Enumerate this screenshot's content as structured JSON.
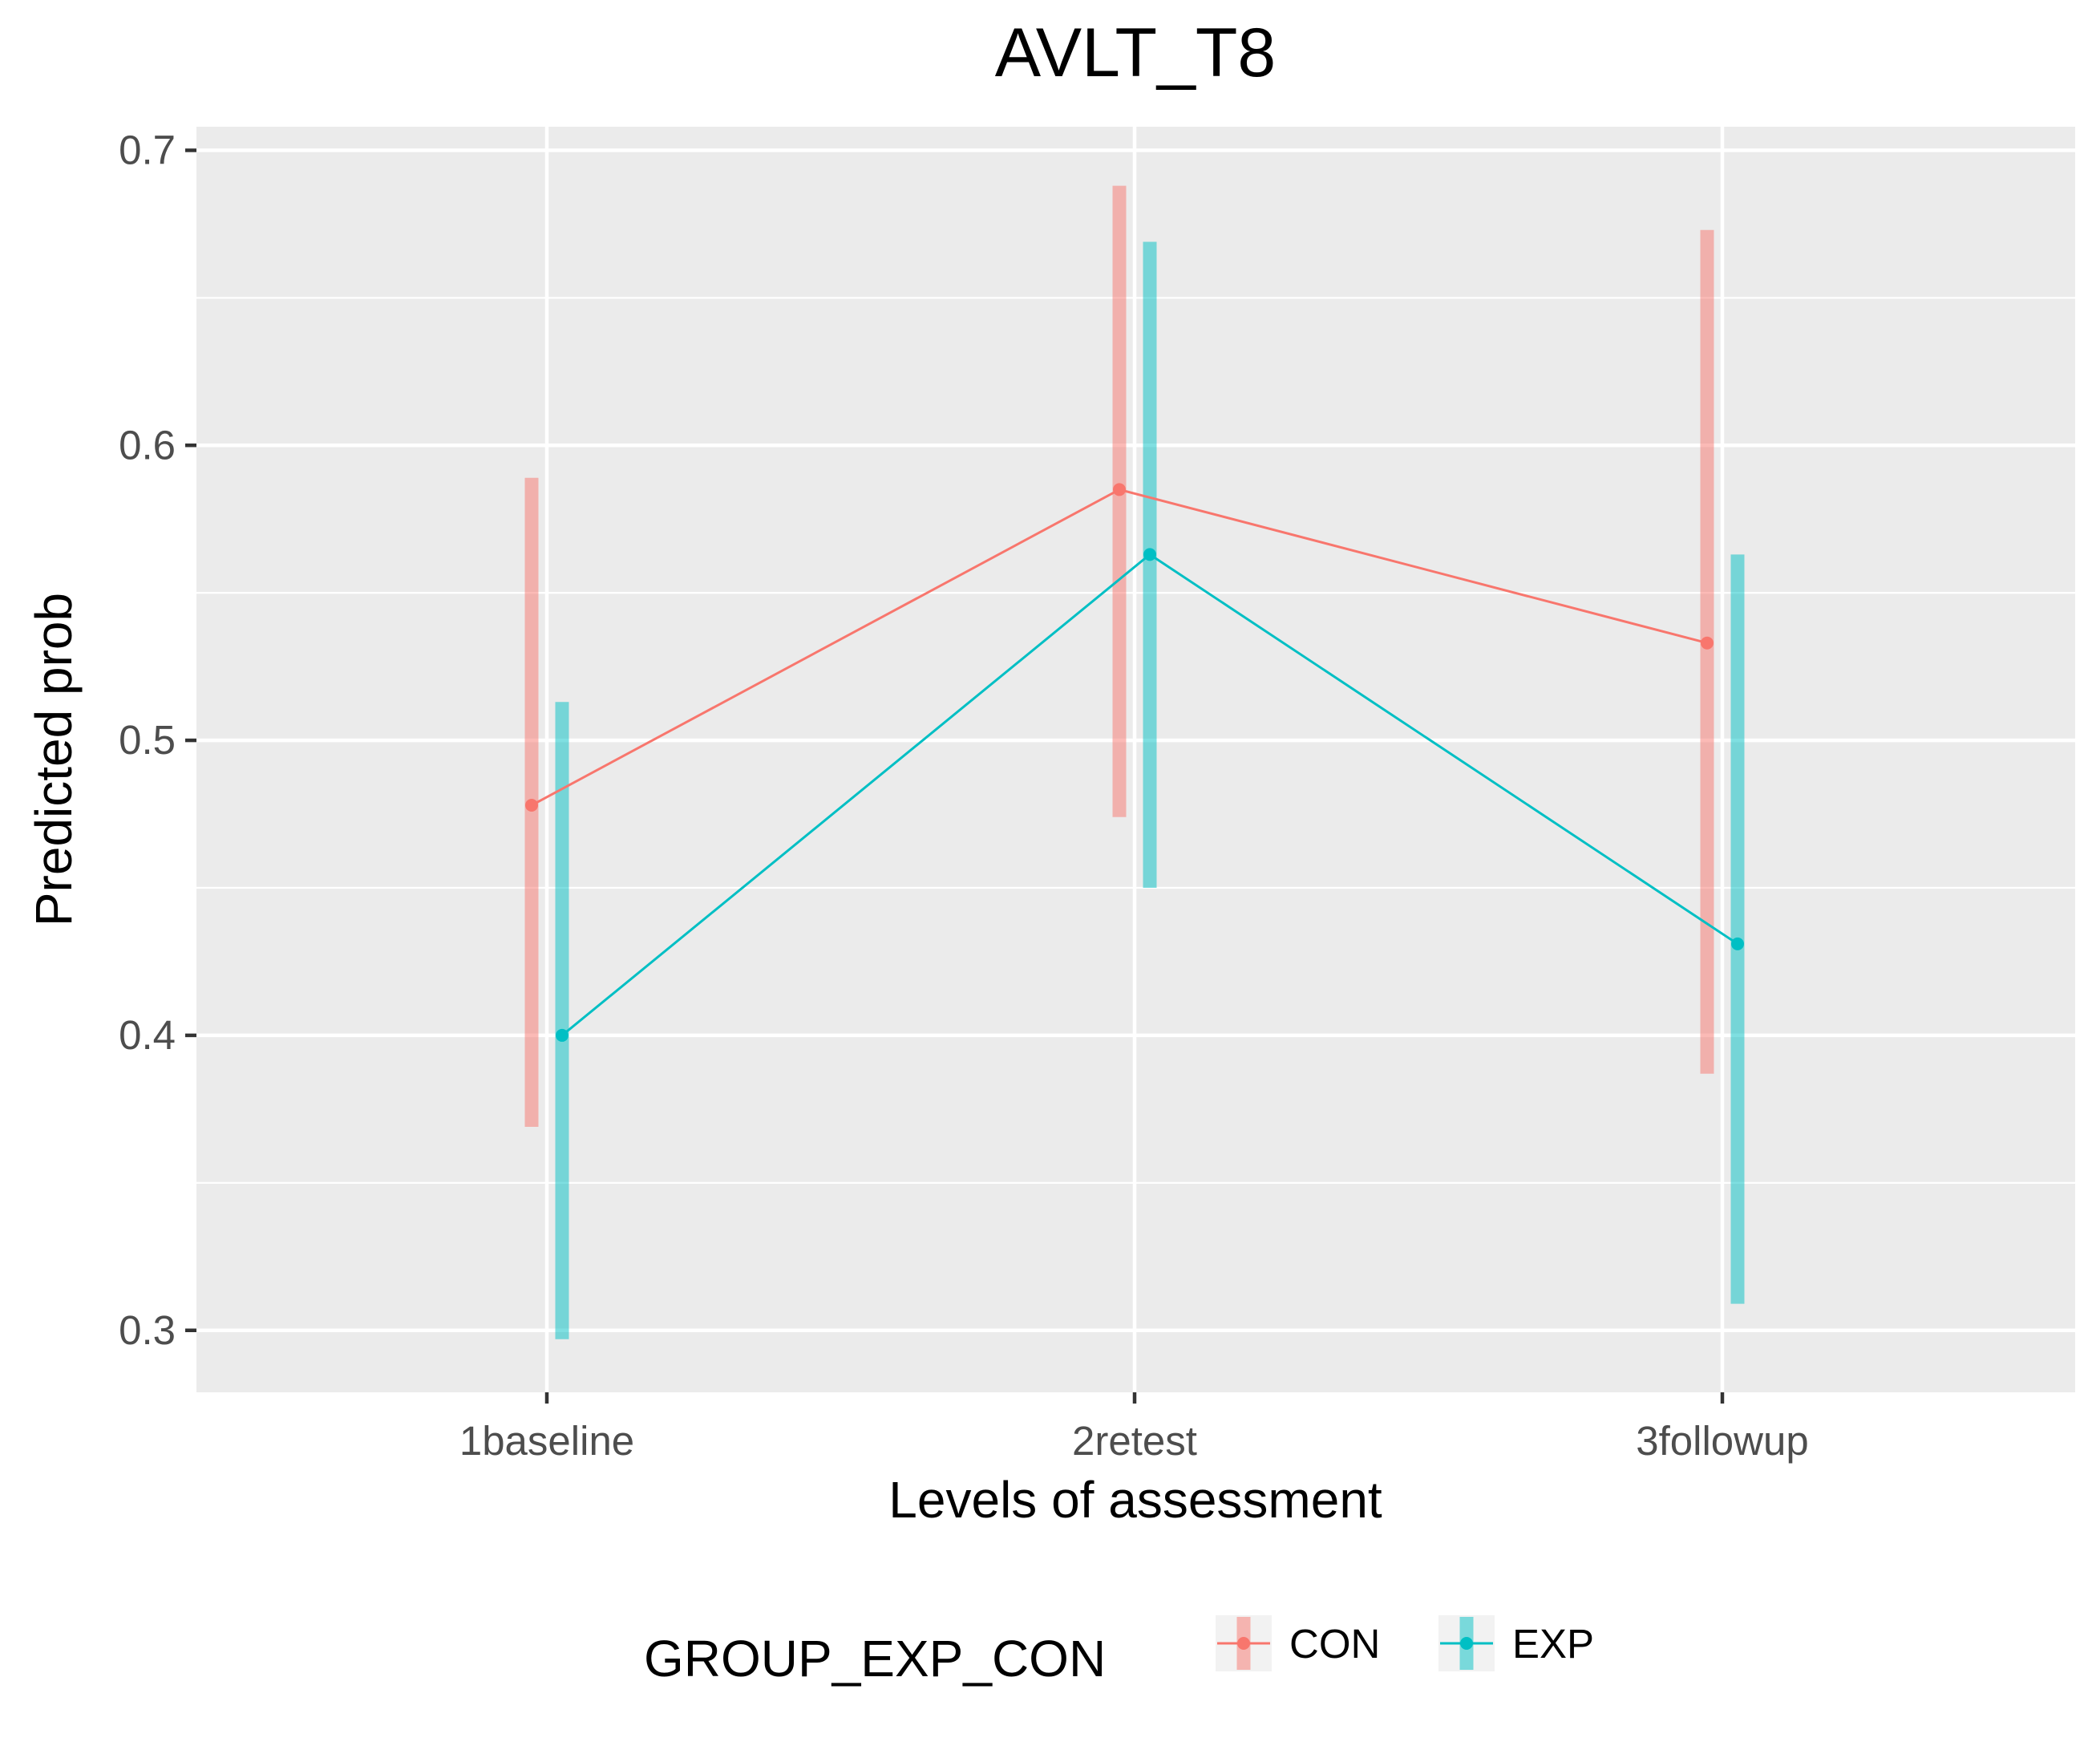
{
  "chart_data": {
    "type": "line",
    "title": "AVLT_T8",
    "xlabel": "Levels of assessment",
    "ylabel": "Predicted prob",
    "categories": [
      "1baseline",
      "2retest",
      "3followup"
    ],
    "y_ticks": [
      "0.3",
      "0.4",
      "0.5",
      "0.6",
      "0.7"
    ],
    "ylim": [
      0.279,
      0.708
    ],
    "grid": true,
    "legend": {
      "title": "GROUP_EXP_CON",
      "position": "bottom"
    },
    "series": [
      {
        "name": "CON",
        "color": "#F8766D",
        "values": [
          0.478,
          0.585,
          0.533
        ],
        "ci_low": [
          0.369,
          0.474,
          0.387
        ],
        "ci_high": [
          0.589,
          0.688,
          0.673
        ]
      },
      {
        "name": "EXP",
        "color": "#00BFC4",
        "values": [
          0.4,
          0.563,
          0.431
        ],
        "ci_low": [
          0.297,
          0.45,
          0.309
        ],
        "ci_high": [
          0.513,
          0.669,
          0.563
        ]
      }
    ]
  }
}
